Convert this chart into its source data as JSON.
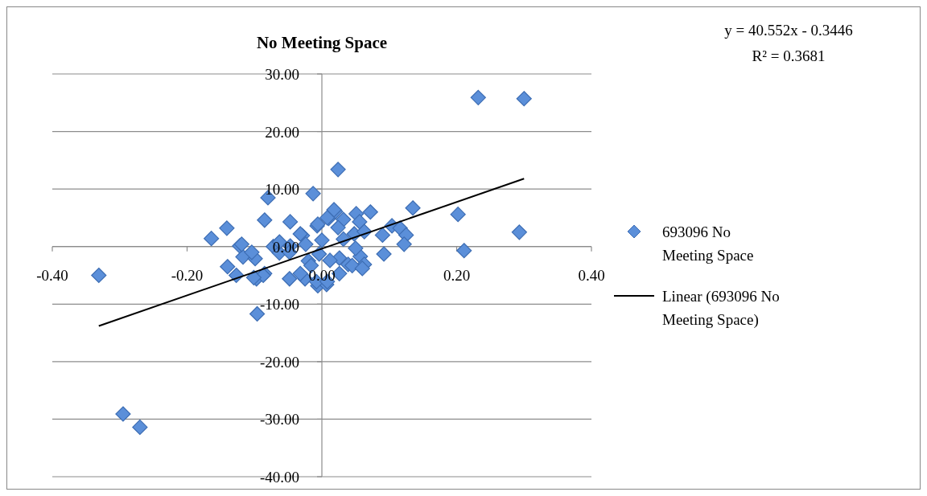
{
  "chart_data": {
    "type": "scatter",
    "title": "No Meeting Space",
    "annotations": [
      "y = 40.552x - 0.3446",
      "R² = 0.3681"
    ],
    "xlim": [
      -0.4,
      0.4
    ],
    "xticks": [
      {
        "value": -0.4,
        "label": "-0.40"
      },
      {
        "value": -0.2,
        "label": "-0.20"
      },
      {
        "value": 0,
        "label": "0.00"
      },
      {
        "value": 0.2,
        "label": "0.20"
      },
      {
        "value": 0.4,
        "label": "0.40"
      }
    ],
    "ylim": [
      -40,
      30
    ],
    "yticks": [
      {
        "value": -40,
        "label": "-40.00"
      },
      {
        "value": -30,
        "label": "-30.00"
      },
      {
        "value": -20,
        "label": "-20.00"
      },
      {
        "value": -10,
        "label": "-10.00"
      },
      {
        "value": 0,
        "label": "0.00"
      },
      {
        "value": 10,
        "label": "10.00"
      },
      {
        "value": 20,
        "label": "20.00"
      },
      {
        "value": 30,
        "label": "30.00"
      }
    ],
    "grid": "y",
    "legend": "right",
    "series": [
      {
        "name": "693096 No Meeting Space",
        "marker": "diamond",
        "color": "#5b8fd9",
        "x": [
          -0.331,
          -0.295,
          -0.27,
          0.232,
          0.3,
          0.293,
          0.202,
          0.211,
          0.024,
          -0.013,
          -0.08,
          -0.164,
          -0.141,
          -0.122,
          -0.14,
          -0.127,
          -0.117,
          -0.099,
          -0.097,
          -0.085,
          -0.096,
          -0.085,
          -0.047,
          -0.072,
          -0.063,
          -0.048,
          -0.029,
          -0.025,
          -0.006,
          0.007,
          -0.007,
          0.01,
          0.02,
          -0.047,
          -0.02,
          0.135,
          0.072,
          0.051,
          0.018,
          0.008,
          0.032,
          -0.006,
          0.024,
          0.056,
          0.104,
          0.116,
          0.09,
          0.125,
          0.122,
          0.092,
          0.057,
          0.05,
          0.063,
          0.039,
          0.026,
          0.012,
          -0.004,
          0,
          0.032,
          0.048,
          0.063,
          -0.032,
          -0.024,
          -0.063,
          -0.048,
          -0.016,
          -0.032,
          -0.008,
          0.008,
          0.045,
          0.06,
          0.026,
          -0.119,
          -0.104,
          -0.087,
          -0.101
        ],
        "values": [
          -5.0,
          -29.1,
          -31.4,
          25.9,
          25.7,
          2.5,
          5.6,
          -0.7,
          13.4,
          9.2,
          8.5,
          1.4,
          3.2,
          0.1,
          -3.5,
          -5.0,
          -1.8,
          -2.1,
          -5.6,
          -4.7,
          -11.7,
          4.6,
          4.3,
          0,
          -1.1,
          -5.6,
          1.9,
          -5.6,
          -6.8,
          -6.6,
          3.6,
          4.9,
          6.1,
          0.1,
          -2.5,
          6.7,
          6.0,
          5.7,
          6.4,
          5.0,
          4.7,
          3.9,
          3.3,
          4.3,
          3.6,
          3.2,
          2.0,
          2.0,
          0.4,
          -1.3,
          -1.7,
          -0.3,
          -3.1,
          -3.1,
          -2.0,
          -2.4,
          -1.3,
          1.1,
          1.3,
          2.2,
          2.6,
          2.2,
          0.4,
          0.8,
          -1.0,
          -3.3,
          -4.7,
          -6.1,
          -6.1,
          -3.3,
          -3.8,
          -4.7,
          0.4,
          -1.0,
          -5.0,
          -5.4
        ]
      },
      {
        "name": "Linear (693096 No Meeting Space)",
        "type": "line",
        "color": "#000000",
        "x": [
          -0.331,
          0.3
        ],
        "values": [
          -13.8,
          11.8
        ]
      }
    ]
  }
}
